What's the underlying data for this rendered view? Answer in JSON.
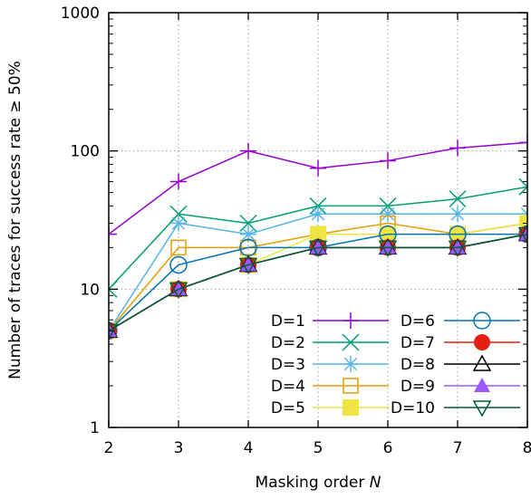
{
  "chart_data": {
    "type": "line",
    "xlabel": "Masking order",
    "xlabel_var": "N",
    "ylabel": "Number of traces for success rate ≥ 50%",
    "x": [
      2,
      3,
      4,
      5,
      6,
      7,
      8
    ],
    "xlim": [
      2,
      8
    ],
    "ylim": [
      1,
      1000
    ],
    "yscale": "log",
    "yticks": [
      "1",
      "10",
      "100",
      "1000"
    ],
    "grid": true,
    "legend_position": "bottom-right",
    "series": [
      {
        "name": "D=1",
        "color": "#9400d3",
        "marker": "plus",
        "values": [
          25,
          60,
          100,
          75,
          85,
          105,
          115
        ]
      },
      {
        "name": "D=2",
        "color": "#009e73",
        "marker": "cross",
        "values": [
          10,
          35,
          30,
          40,
          40,
          45,
          55
        ]
      },
      {
        "name": "D=3",
        "color": "#56b4e9",
        "marker": "star",
        "values": [
          5,
          30,
          25,
          35,
          35,
          35,
          35
        ]
      },
      {
        "name": "D=4",
        "color": "#e69f00",
        "marker": "open-square",
        "values": [
          5,
          20,
          20,
          25,
          30,
          25,
          30
        ]
      },
      {
        "name": "D=5",
        "color": "#f0e442",
        "marker": "filled-square",
        "values": [
          5,
          10,
          15,
          25,
          25,
          25,
          30
        ]
      },
      {
        "name": "D=6",
        "color": "#0072b2",
        "marker": "open-circle",
        "values": [
          5,
          15,
          20,
          20,
          25,
          25,
          25
        ]
      },
      {
        "name": "D=7",
        "color": "#e51e10",
        "marker": "filled-circle",
        "values": [
          5,
          10,
          15,
          20,
          20,
          20,
          25
        ]
      },
      {
        "name": "D=8",
        "color": "#000000",
        "marker": "open-triangle",
        "values": [
          5,
          10,
          15,
          20,
          20,
          20,
          25
        ]
      },
      {
        "name": "D=9",
        "color": "#9b59ff",
        "marker": "filled-triangle",
        "values": [
          5,
          10,
          15,
          20,
          20,
          20,
          25
        ]
      },
      {
        "name": "D=10",
        "color": "#005a32",
        "marker": "open-triangle-down",
        "values": [
          5,
          10,
          15,
          20,
          20,
          20,
          25
        ]
      }
    ]
  }
}
